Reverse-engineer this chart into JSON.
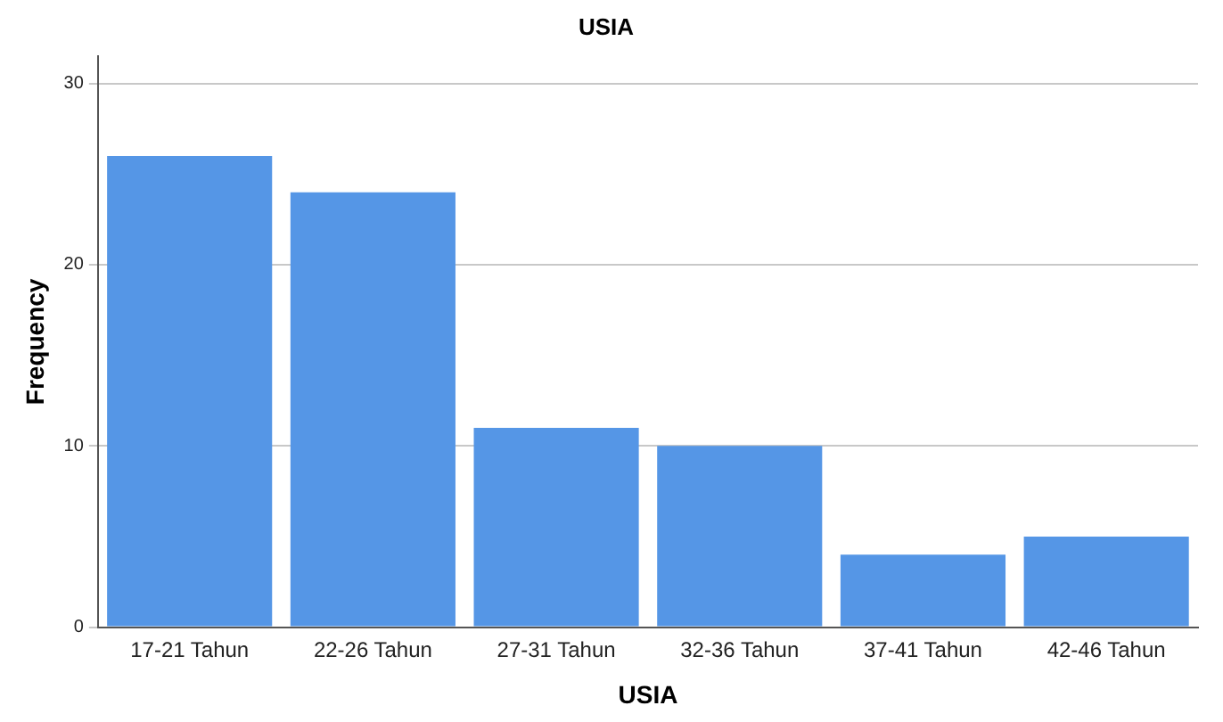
{
  "chart_data": {
    "type": "bar",
    "title": "USIA",
    "xlabel": "USIA",
    "ylabel": "Frequency",
    "categories": [
      "17-21 Tahun",
      "22-26 Tahun",
      "27-31 Tahun",
      "32-36 Tahun",
      "37-41 Tahun",
      "42-46 Tahun"
    ],
    "values": [
      26,
      24,
      11,
      10,
      4,
      5
    ],
    "color": "#5596e6",
    "ylim": [
      0,
      31.5
    ],
    "yticks": [
      0,
      10,
      20,
      30
    ],
    "grid": "y",
    "legend": false
  }
}
